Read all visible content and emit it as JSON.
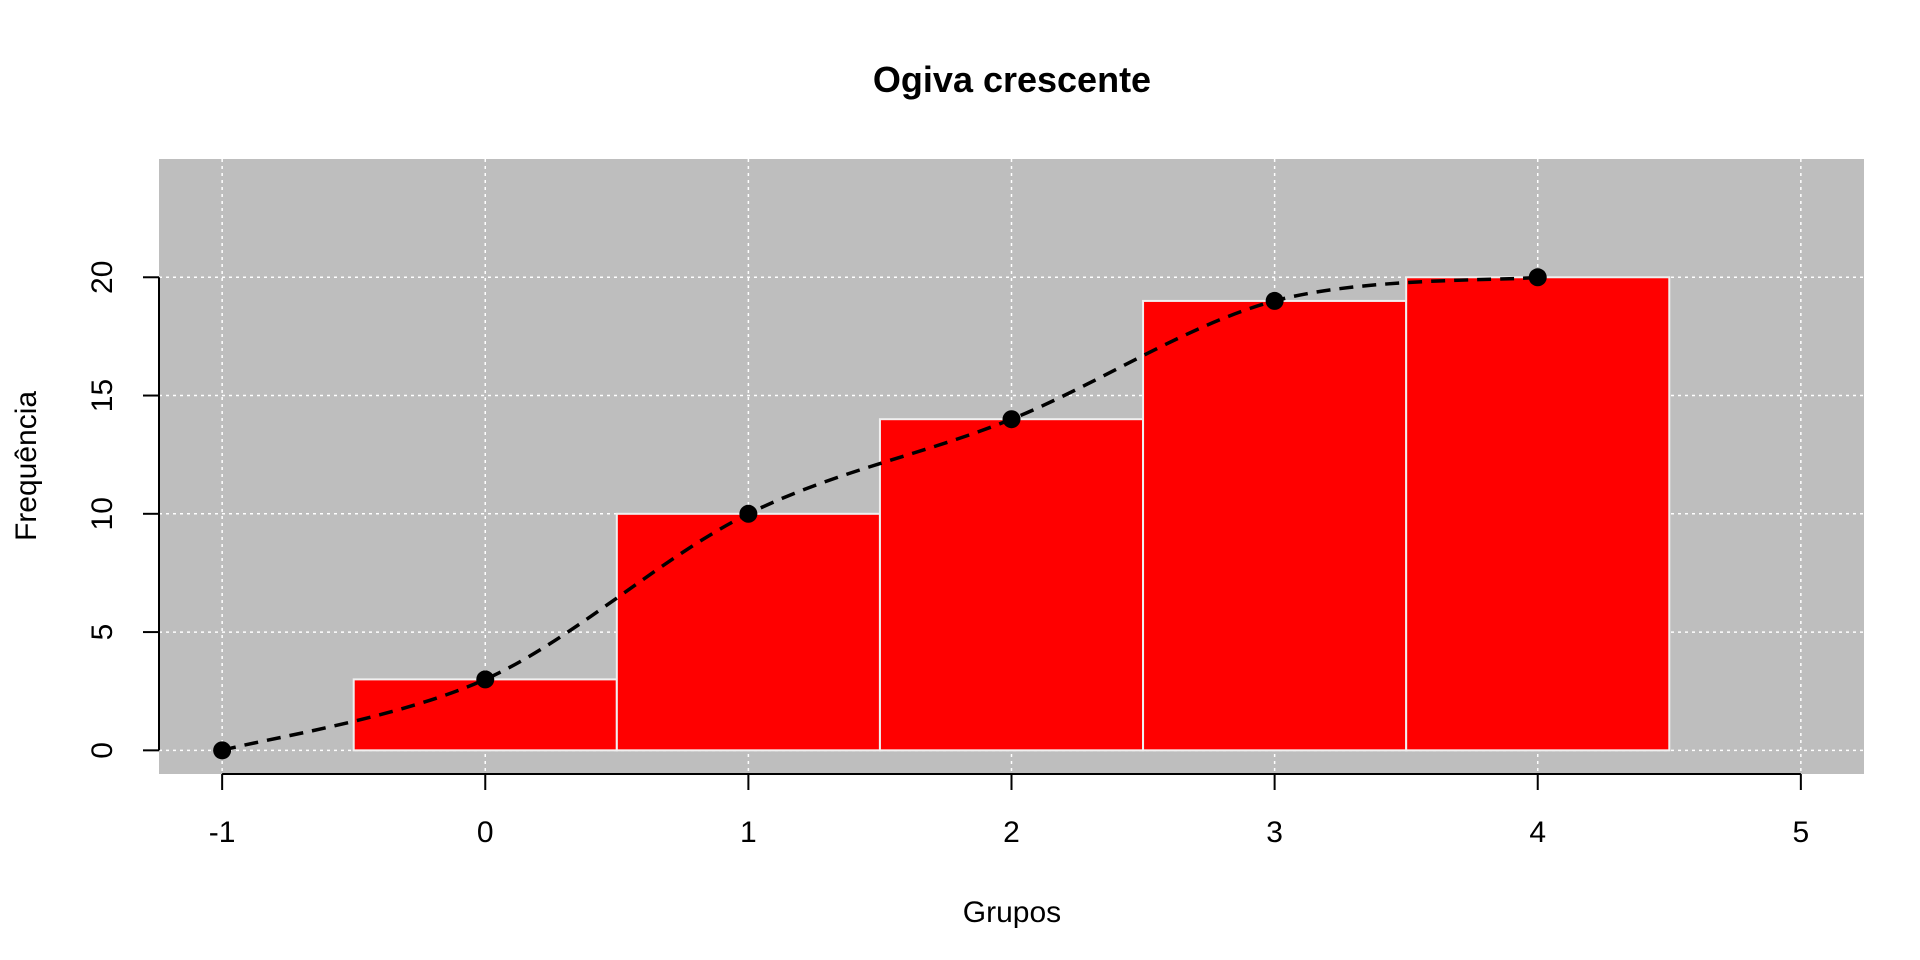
{
  "chart_data": {
    "type": "bar",
    "title": "Ogiva crescente",
    "xlabel": "Grupos",
    "ylabel": "Frequência",
    "xlim": [
      -1.24,
      5.24
    ],
    "ylim": [
      -1.0,
      25.0
    ],
    "x_ticks": [
      "-1",
      "0",
      "1",
      "2",
      "3",
      "4",
      "5"
    ],
    "y_ticks": [
      "0",
      "5",
      "10",
      "15",
      "20"
    ],
    "grid": true,
    "background_color": "#bebebe",
    "bars": {
      "color": "#ff0000",
      "border_color": "#f0f0f0",
      "categories": [
        "0",
        "1",
        "2",
        "3",
        "4"
      ],
      "x": [
        0,
        1,
        2,
        3,
        4
      ],
      "values": [
        3,
        10,
        14,
        19,
        20
      ]
    },
    "ogive": {
      "type": "line",
      "style": "dashed",
      "color": "#000000",
      "marker": "filled-circle",
      "x": [
        -1,
        0,
        1,
        2,
        3,
        4
      ],
      "y": [
        0,
        3,
        10,
        14,
        19,
        20
      ]
    }
  }
}
